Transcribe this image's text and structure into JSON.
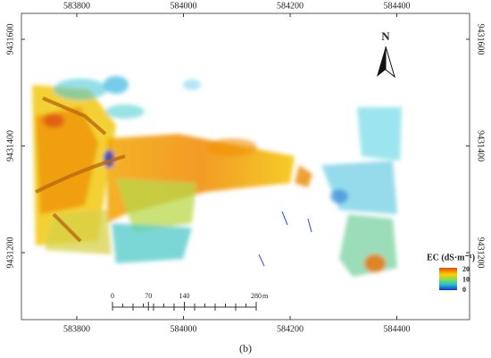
{
  "map": {
    "x_ticks": [
      583800,
      584000,
      584200,
      584400
    ],
    "y_ticks": [
      9431600,
      9431400,
      9431200
    ],
    "north_label": "N",
    "scale_bar": {
      "ticks": [
        0,
        70,
        140,
        280
      ],
      "unit": "m"
    },
    "legend": {
      "title": "EC (dS·m⁻¹)",
      "ticks": [
        20,
        10,
        0
      ]
    }
  },
  "caption": "(b)"
}
